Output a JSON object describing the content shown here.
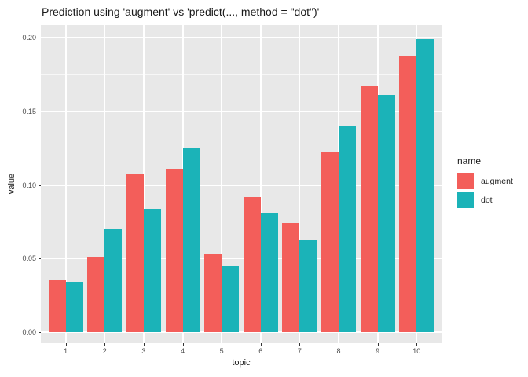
{
  "title": "Prediction using 'augment' vs 'predict(..., method = \"dot\")'",
  "axes": {
    "x": {
      "label": "topic",
      "ticks": [
        "1",
        "2",
        "3",
        "4",
        "5",
        "6",
        "7",
        "8",
        "9",
        "10"
      ]
    },
    "y": {
      "label": "value",
      "ticks": [
        "0.00",
        "0.05",
        "0.10",
        "0.15",
        "0.20"
      ]
    }
  },
  "legend": {
    "title": "name",
    "items": [
      {
        "label": "augment",
        "color": "#F35E5A"
      },
      {
        "label": "dot",
        "color": "#1BB3B8"
      }
    ]
  },
  "colors": {
    "panel_background": "#E8E8E8",
    "grid": "#FFFFFF",
    "tick_label": "#4D4D4D",
    "text": "#1A1A1A"
  },
  "chart_data": {
    "type": "bar",
    "bar_layout": "dodge",
    "title": "Prediction using 'augment' vs 'predict(..., method = \"dot\")'",
    "xlabel": "topic",
    "ylabel": "value",
    "categories": [
      1,
      2,
      3,
      4,
      5,
      6,
      7,
      8,
      9,
      10
    ],
    "series": [
      {
        "name": "augment",
        "color": "#F35E5A",
        "values": [
          0.035,
          0.051,
          0.108,
          0.111,
          0.053,
          0.092,
          0.074,
          0.122,
          0.167,
          0.188
        ]
      },
      {
        "name": "dot",
        "color": "#1BB3B8",
        "values": [
          0.034,
          0.07,
          0.084,
          0.125,
          0.045,
          0.081,
          0.063,
          0.14,
          0.161,
          0.199
        ]
      }
    ],
    "ylim": [
      0,
      0.216
    ],
    "y_major_ticks": [
      0,
      0.05,
      0.1,
      0.15,
      0.2
    ],
    "y_minor_ticks": [
      0.025,
      0.075,
      0.125,
      0.175
    ],
    "grid": true,
    "legend_position": "right",
    "legend_title": "name"
  }
}
